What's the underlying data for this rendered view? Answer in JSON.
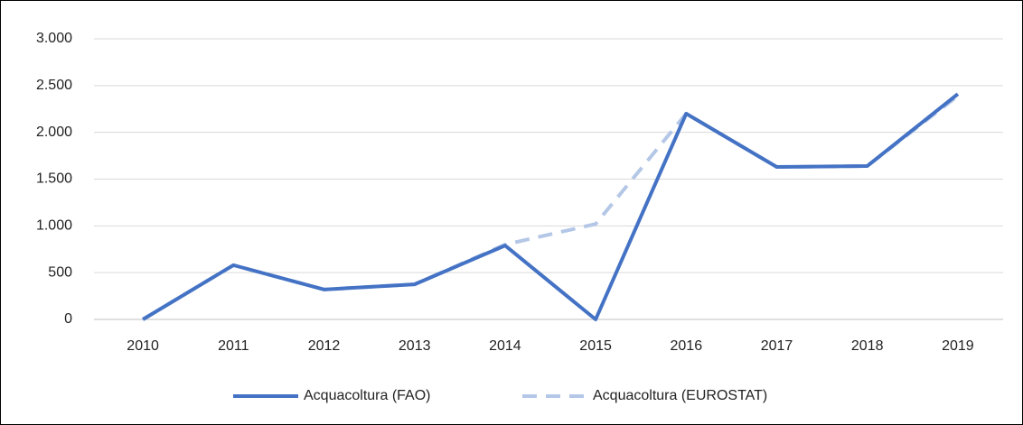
{
  "chart_data": {
    "type": "line",
    "categories": [
      "2010",
      "2011",
      "2012",
      "2013",
      "2014",
      "2015",
      "2016",
      "2017",
      "2018",
      "2019"
    ],
    "series": [
      {
        "name": "Acquacoltura (FAO)",
        "color": "#4472c4",
        "dashed": false,
        "values": [
          0,
          580,
          320,
          375,
          790,
          0,
          2200,
          1630,
          1640,
          2410
        ]
      },
      {
        "name": "Acquacoltura (EUROSTAT)",
        "color": "#b4c7e7",
        "dashed": true,
        "values": [
          0,
          580,
          320,
          375,
          800,
          1020,
          2200,
          1630,
          1640,
          2390
        ]
      }
    ],
    "ylim": [
      0,
      3000
    ],
    "yticks": [
      0,
      500,
      {
        "value": 1000,
        "label": "1.000"
      },
      {
        "value": 1500,
        "label": "1.500"
      },
      {
        "value": 2000,
        "label": "2.000"
      },
      {
        "value": 2500,
        "label": "2.500"
      },
      {
        "value": 3000,
        "label": "3.000"
      }
    ],
    "grid": true,
    "legend": "bottom"
  }
}
